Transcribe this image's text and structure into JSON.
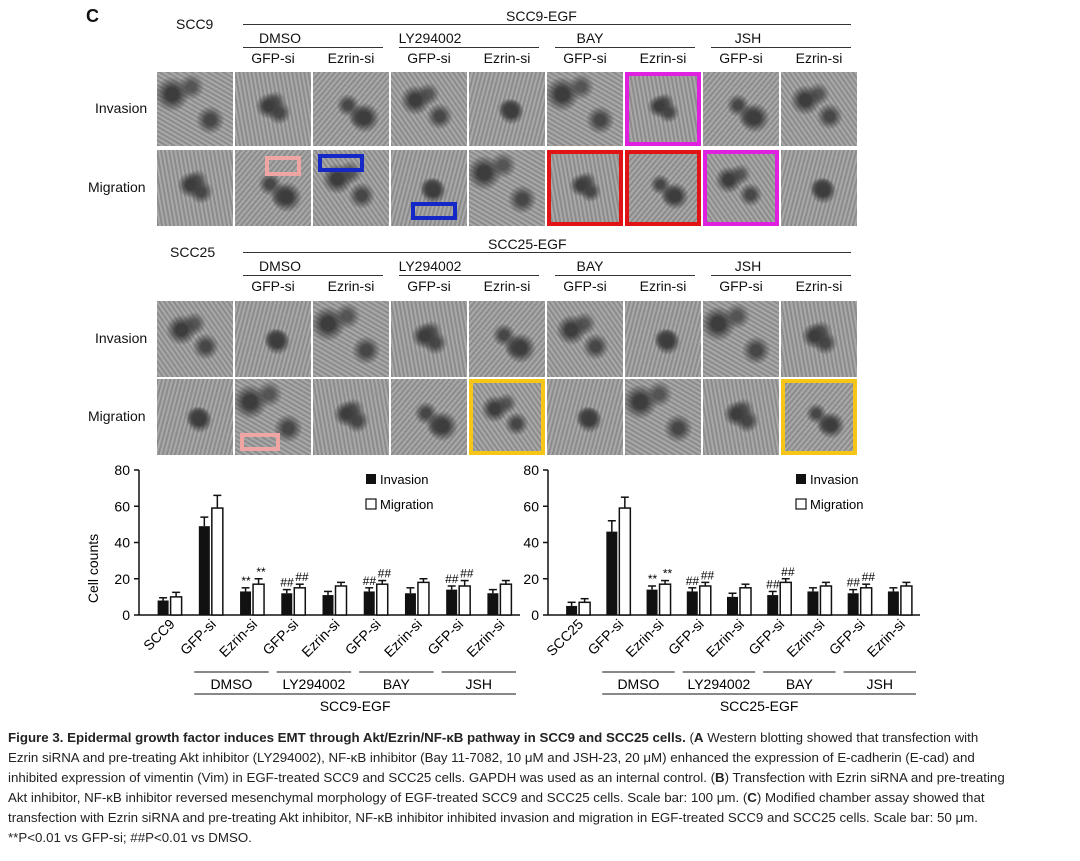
{
  "panel_letter": "C",
  "colors": {
    "pink": "#f0a5a5",
    "blue": "#1428c8",
    "magenta": "#e020e0",
    "red": "#e01414",
    "yellow": "#f5c518",
    "tile_bg": "#9a9a9a"
  },
  "micro": [
    {
      "line": "SCC9",
      "group": "SCC9-EGF",
      "treatments": [
        "DMSO",
        "LY294002",
        "BAY",
        "JSH"
      ],
      "sub": [
        "GFP-si",
        "Ezrin-si"
      ],
      "rows": [
        "Invasion",
        "Migration"
      ],
      "tiles": [
        {
          "row": "Invasion",
          "col": 6,
          "frame": "magenta"
        },
        {
          "row": "Migration",
          "col": 5,
          "frame": "red"
        },
        {
          "row": "Migration",
          "col": 6,
          "frame": "red"
        },
        {
          "row": "Migration",
          "col": 7,
          "frame": "magenta"
        }
      ],
      "insets": [
        {
          "row": "Migration",
          "col": 1,
          "color": "pink"
        },
        {
          "row": "Migration",
          "col": 2,
          "color": "blue"
        },
        {
          "row": "Migration",
          "col": 3,
          "color": "blue"
        }
      ]
    },
    {
      "line": "SCC25",
      "group": "SCC25-EGF",
      "treatments": [
        "DMSO",
        "LY294002",
        "BAY",
        "JSH"
      ],
      "sub": [
        "GFP-si",
        "Ezrin-si"
      ],
      "rows": [
        "Invasion",
        "Migration"
      ],
      "tiles": [
        {
          "row": "Migration",
          "col": 4,
          "frame": "yellow"
        },
        {
          "row": "Migration",
          "col": 8,
          "frame": "yellow"
        }
      ],
      "insets": [
        {
          "row": "Migration",
          "col": 1,
          "color": "pink"
        }
      ]
    }
  ],
  "chart_data": [
    {
      "type": "bar",
      "ylabel": "Cell counts",
      "ylim": [
        0,
        80
      ],
      "yticks": [
        0,
        20,
        40,
        60,
        80
      ],
      "categories": [
        "SCC9",
        "GFP-si",
        "Ezrin-si",
        "GFP-si",
        "Ezrin-si",
        "GFP-si",
        "Ezrin-si",
        "GFP-si",
        "Ezrin-si"
      ],
      "series": [
        {
          "name": "Invasion",
          "values": [
            8,
            49,
            13,
            12,
            11,
            13,
            12,
            14,
            12
          ],
          "errors": [
            1.5,
            5,
            2,
            2,
            2,
            2,
            3,
            2,
            2
          ]
        },
        {
          "name": "Migration",
          "values": [
            10,
            59,
            17,
            15,
            16,
            17,
            18,
            16,
            17
          ],
          "errors": [
            2.5,
            7,
            3,
            2,
            2,
            2,
            2,
            3,
            2
          ]
        }
      ],
      "sig_marks": [
        "",
        "",
        "**",
        "##",
        "",
        "##",
        "",
        "##",
        ""
      ],
      "sig_marks_migration": [
        "",
        "",
        "**",
        "##",
        "",
        "##",
        "",
        "##",
        ""
      ],
      "groups": [
        "DMSO",
        "LY294002",
        "BAY",
        "JSH"
      ],
      "group_label": "SCC9-EGF",
      "legend": [
        "Invasion",
        "Migration"
      ]
    },
    {
      "type": "bar",
      "ylabel": "",
      "ylim": [
        0,
        80
      ],
      "yticks": [
        0,
        20,
        40,
        60,
        80
      ],
      "categories": [
        "SCC25",
        "GFP-si",
        "Ezrin-si",
        "GFP-si",
        "Ezrin-si",
        "GFP-si",
        "Ezrin-si",
        "GFP-si",
        "Ezrin-si"
      ],
      "series": [
        {
          "name": "Invasion",
          "values": [
            5,
            46,
            14,
            13,
            10,
            11,
            13,
            12,
            13
          ],
          "errors": [
            2,
            6,
            2,
            2,
            2,
            2,
            2,
            2,
            2
          ]
        },
        {
          "name": "Migration",
          "values": [
            7,
            59,
            17,
            16,
            15,
            18,
            16,
            15,
            16
          ],
          "errors": [
            2,
            6,
            2,
            2,
            2,
            2,
            2,
            2,
            2
          ]
        }
      ],
      "sig_marks": [
        "",
        "",
        "**",
        "##",
        "",
        "##",
        "",
        "##",
        ""
      ],
      "sig_marks_migration": [
        "",
        "",
        "**",
        "##",
        "",
        "##",
        "",
        "##",
        ""
      ],
      "groups": [
        "DMSO",
        "LY294002",
        "BAY",
        "JSH"
      ],
      "group_label": "SCC25-EGF",
      "legend": [
        "Invasion",
        "Migration"
      ]
    }
  ],
  "caption": {
    "title": "Figure 3. Epidermal growth factor induces EMT through Akt/Ezrin/NF-κB pathway in SCC9 and SCC25 cells.",
    "a_letter": "A",
    "a_text": " Western blotting showed that transfection with Ezrin siRNA and pre-treating Akt inhibitor (LY294002), NF-κB inhibitor (Bay 11-7082, 10 μM and JSH-23, 20 μM) enhanced the expression of E-cadherin (E-cad) and inhibited expression of vimentin (Vim) in EGF-treated SCC9 and SCC25 cells. GAPDH was used as an internal control. (",
    "b_letter": "B",
    "b_text": ") Transfection with Ezrin siRNA and pre-treating Akt inhibitor, NF-κB inhibitor reversed mesenchymal morphology of EGF-treated SCC9 and SCC25 cells. Scale bar: 100 μm. (",
    "c_letter": "C",
    "c_text": ") Modified chamber assay showed that transfection with Ezrin siRNA and pre-treating Akt inhibitor, NF-κB inhibitor inhibited invasion and migration in EGF-treated SCC9 and SCC25 cells. Scale bar: 50 μm. **P<0.01 vs GFP-si; ##P<0.01 vs DMSO."
  }
}
